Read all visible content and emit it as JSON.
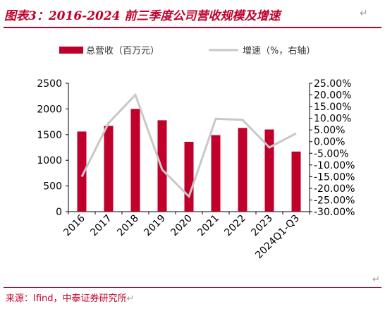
{
  "header": {
    "title": "图表3：2016-2024 前三季度公司营收规模及增速",
    "return_mark": "↵"
  },
  "footer": {
    "source": "来源：Ifind，中泰证券研究所",
    "return_mark": "↵"
  },
  "colors": {
    "bar": "#c0002a",
    "line": "#c8c8c8",
    "accent": "#c0002a"
  },
  "chart_data": {
    "type": "bar",
    "categories": [
      "2016",
      "2017",
      "2018",
      "2019",
      "2020",
      "2021",
      "2022",
      "2023",
      "2024Q1-Q3"
    ],
    "series": [
      {
        "name": "总营收（百万元）",
        "type": "bar",
        "axis": "left",
        "values": [
          1560,
          1670,
          2000,
          1780,
          1360,
          1490,
          1630,
          1600,
          1170
        ]
      },
      {
        "name": "增速（%，右轴）",
        "type": "line",
        "axis": "right",
        "values": [
          -15.0,
          8.0,
          20.0,
          -12.0,
          -23.5,
          9.8,
          9.3,
          -2.5,
          3.5
        ]
      }
    ],
    "left_axis": {
      "ylim": [
        0,
        2500
      ],
      "ticks": [
        "0",
        "500",
        "1000",
        "1500",
        "2000",
        "2500"
      ]
    },
    "right_axis": {
      "ylim": [
        -30,
        25
      ],
      "ticks": [
        "-30.00%",
        "-25.00%",
        "-20.00%",
        "-15.00%",
        "-10.00%",
        "-5.00%",
        "0.00%",
        "5.00%",
        "10.00%",
        "15.00%",
        "20.00%",
        "25.00%"
      ]
    },
    "legend_position": "top",
    "grid": false
  }
}
